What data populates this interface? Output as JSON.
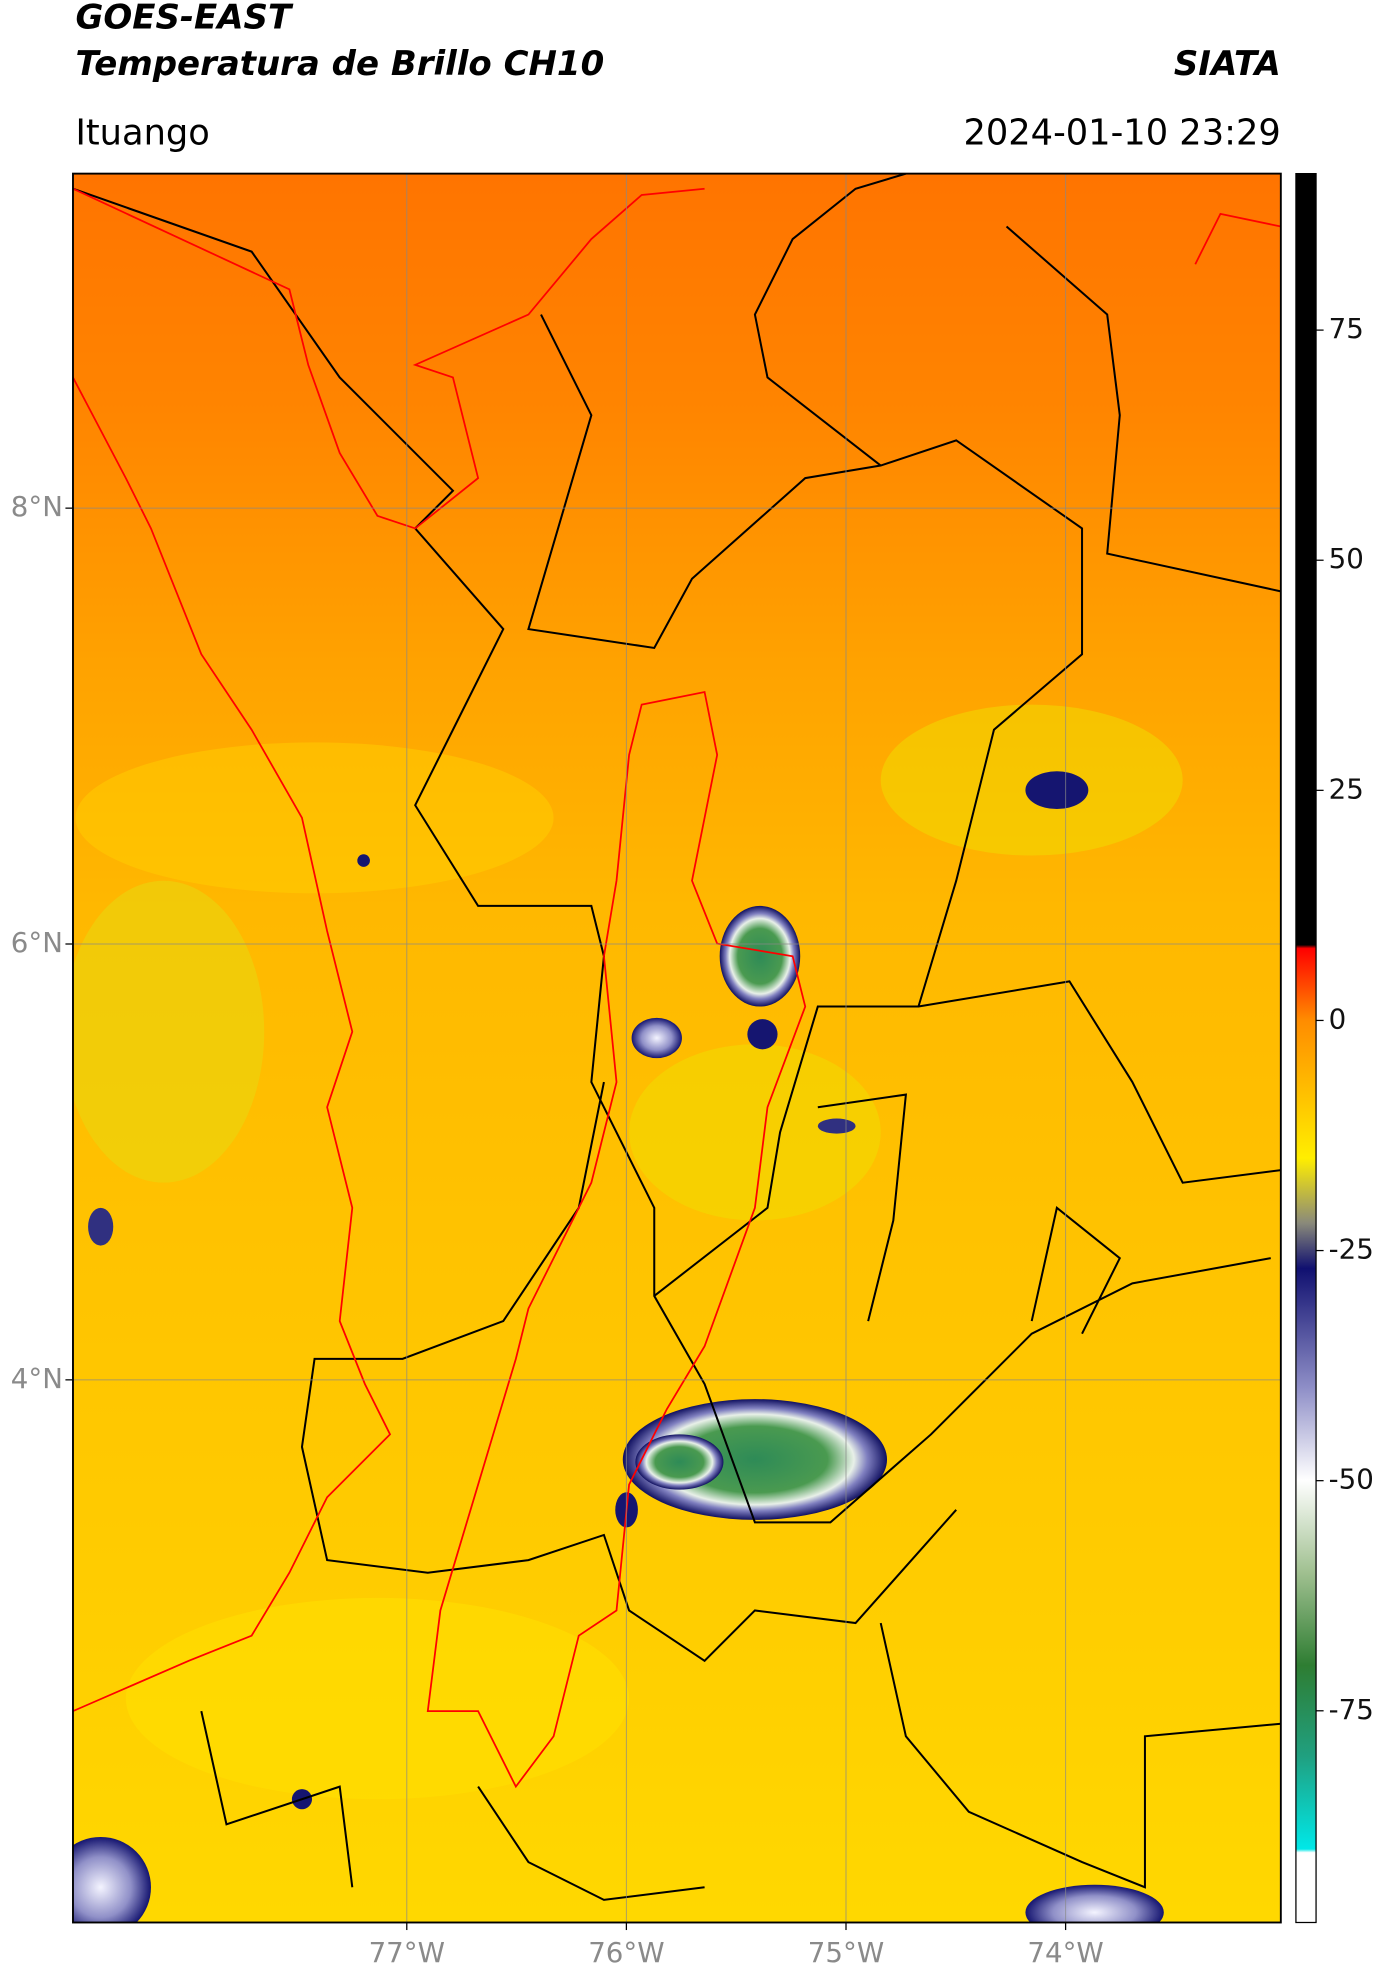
{
  "header": {
    "title": "GOES-EAST",
    "subtitle": "Temperatura de Brillo CH10",
    "brand": "SIATA",
    "location": "Ituango",
    "datetime": "2024-01-10 23:29"
  },
  "map": {
    "lonlim": [
      -78.52,
      -73.02
    ],
    "latlim": [
      1.51,
      9.535
    ],
    "lonticks": [
      {
        "value": -77,
        "label": "77°W"
      },
      {
        "value": -76,
        "label": "76°W"
      },
      {
        "value": -75,
        "label": "75°W"
      },
      {
        "value": -74,
        "label": "74°W"
      }
    ],
    "latticks": [
      {
        "value": 8,
        "label": "8°N"
      },
      {
        "value": 6,
        "label": "6°N"
      },
      {
        "value": 4,
        "label": "4°N"
      }
    ],
    "grid": true
  },
  "colorbar": {
    "lim": [
      -98,
      92
    ],
    "ticks": [
      75,
      50,
      25,
      0,
      -25,
      -50,
      -75
    ]
  }
}
